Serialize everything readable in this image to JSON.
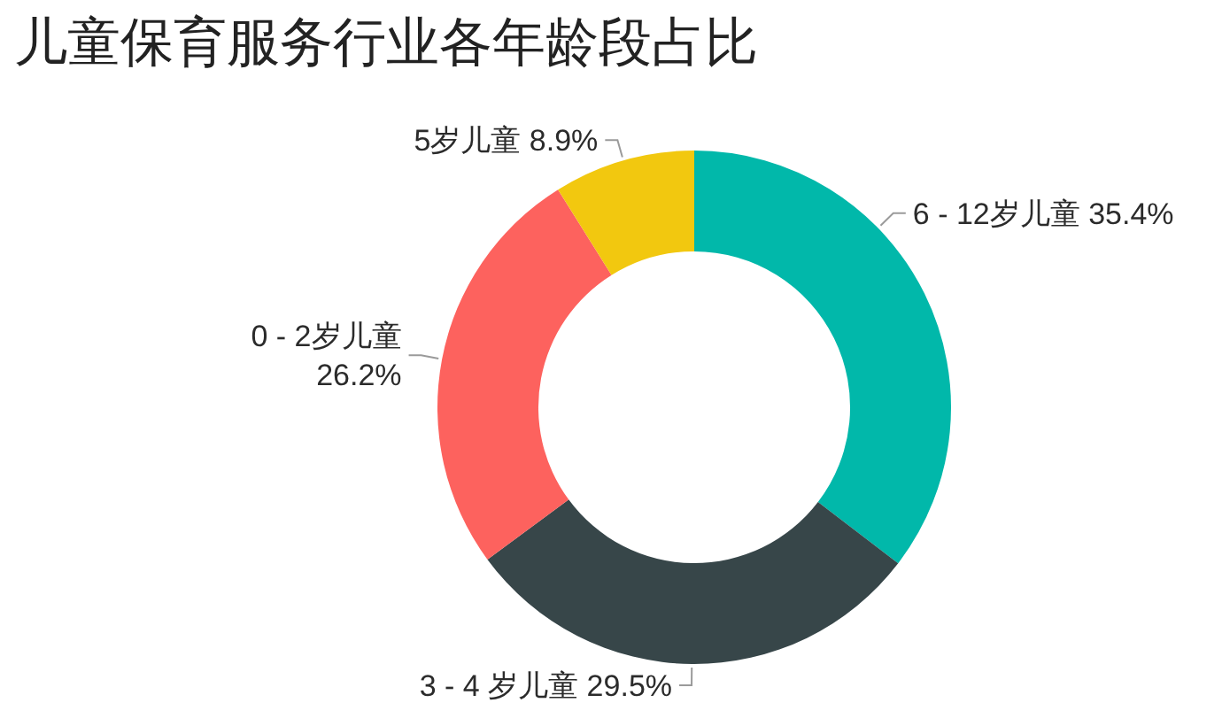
{
  "chart_data": {
    "type": "donut",
    "title": "儿童保育服务行业各年龄段占比",
    "categories": [
      "6 - 12岁儿童",
      "3 - 4 岁儿童",
      "0 - 2岁儿童",
      "5岁儿童"
    ],
    "values": [
      35.4,
      29.5,
      26.2,
      8.9
    ],
    "colors": [
      "#01b8aa",
      "#374649",
      "#fd625e",
      "#f2c80f"
    ],
    "value_labels": [
      "35.4%",
      "29.5%",
      "26.2%",
      "8.9%"
    ]
  }
}
